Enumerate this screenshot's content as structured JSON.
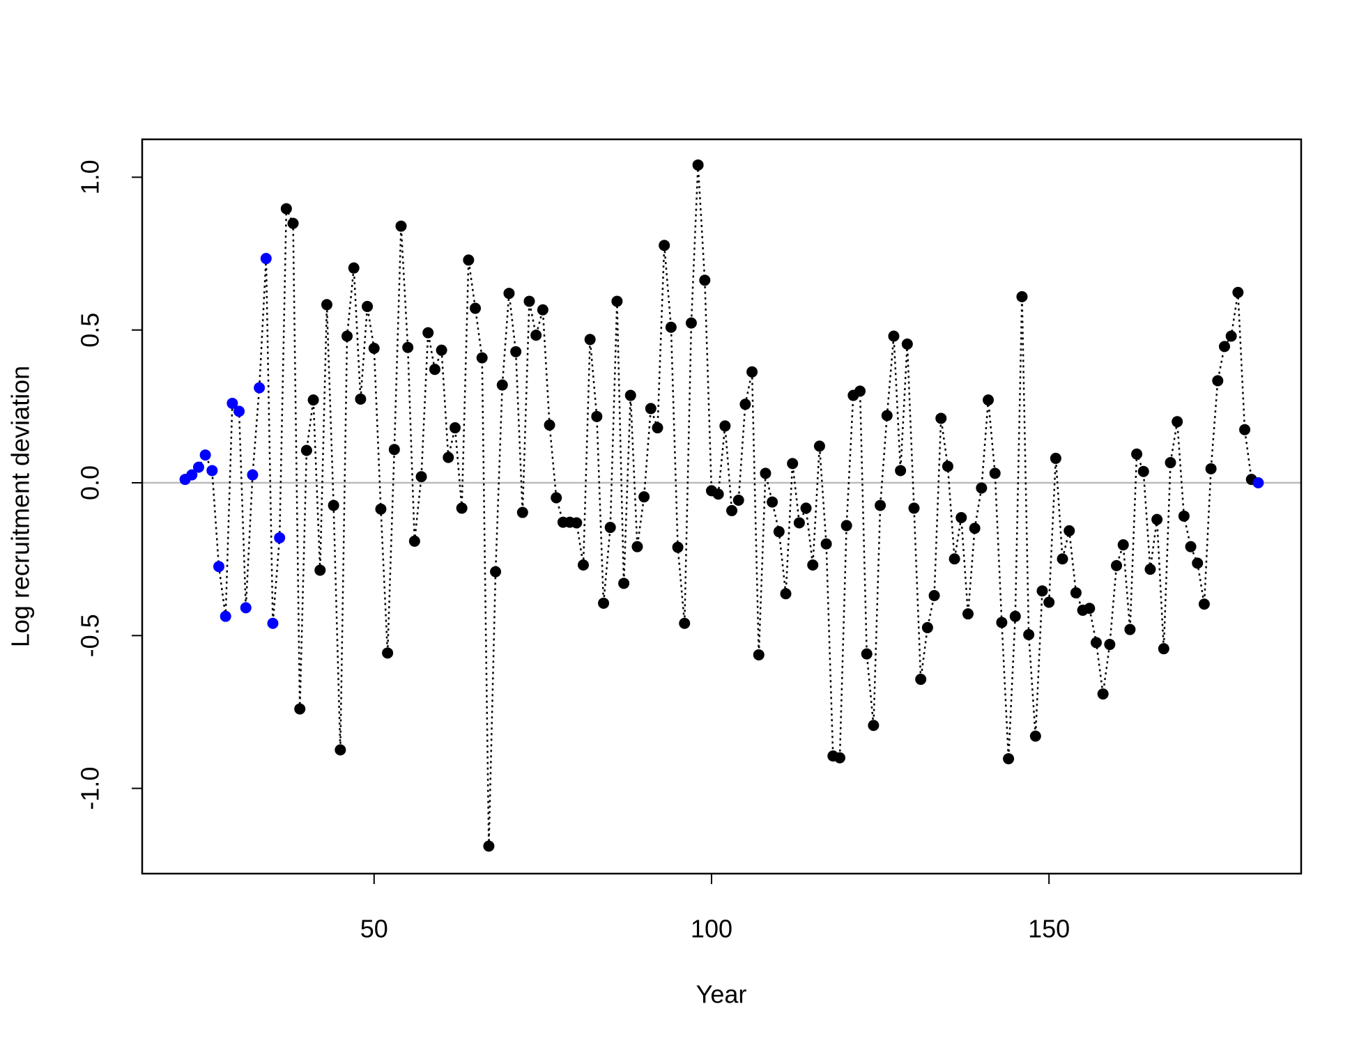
{
  "chart_data": {
    "type": "line",
    "xlabel": "Year",
    "ylabel": "Log recruitment deviation",
    "x": [
      22,
      23,
      24,
      25,
      26,
      27,
      28,
      29,
      30,
      31,
      32,
      33,
      34,
      35,
      36,
      37,
      38,
      39,
      40,
      41,
      42,
      43,
      44,
      45,
      46,
      47,
      48,
      49,
      50,
      51,
      52,
      53,
      54,
      55,
      56,
      57,
      58,
      59,
      60,
      61,
      62,
      63,
      64,
      65,
      66,
      67,
      68,
      69,
      70,
      71,
      72,
      73,
      74,
      75,
      76,
      77,
      78,
      79,
      80,
      81,
      82,
      83,
      84,
      85,
      86,
      87,
      88,
      89,
      90,
      91,
      92,
      93,
      94,
      95,
      96,
      97,
      98,
      99,
      100,
      101,
      102,
      103,
      104,
      105,
      106,
      107,
      108,
      109,
      110,
      111,
      112,
      113,
      114,
      115,
      116,
      117,
      118,
      119,
      120,
      121,
      122,
      123,
      124,
      125,
      126,
      127,
      128,
      129,
      130,
      131,
      132,
      133,
      134,
      135,
      136,
      137,
      138,
      139,
      140,
      141,
      142,
      143,
      144,
      145,
      146,
      147,
      148,
      149,
      150,
      151,
      152,
      153,
      154,
      155,
      156,
      157,
      158,
      159,
      160,
      161,
      162,
      163,
      164,
      165,
      166,
      167,
      168,
      169,
      170,
      171,
      172,
      173,
      174,
      175,
      176,
      177,
      178,
      179,
      180,
      181
    ],
    "values": [
      0.011,
      0.026,
      0.051,
      0.091,
      0.04,
      -0.274,
      -0.437,
      0.26,
      0.234,
      -0.409,
      0.026,
      0.311,
      0.734,
      -0.46,
      -0.18,
      0.897,
      0.849,
      -0.74,
      0.106,
      0.271,
      -0.286,
      0.583,
      -0.074,
      -0.874,
      0.48,
      0.703,
      0.274,
      0.577,
      0.44,
      -0.086,
      -0.557,
      0.109,
      0.84,
      0.443,
      -0.191,
      0.02,
      0.491,
      0.371,
      0.434,
      0.083,
      0.18,
      -0.083,
      0.729,
      0.571,
      0.409,
      -1.189,
      -0.291,
      0.32,
      0.62,
      0.429,
      -0.097,
      0.594,
      0.483,
      0.566,
      0.189,
      -0.049,
      -0.129,
      -0.129,
      -0.131,
      -0.269,
      0.469,
      0.217,
      -0.394,
      -0.146,
      0.594,
      -0.329,
      0.286,
      -0.209,
      -0.046,
      0.243,
      0.18,
      0.777,
      0.509,
      -0.211,
      -0.46,
      0.523,
      1.04,
      0.663,
      -0.026,
      -0.037,
      0.186,
      -0.091,
      -0.057,
      0.257,
      0.363,
      -0.563,
      0.031,
      -0.063,
      -0.16,
      -0.363,
      0.063,
      -0.131,
      -0.083,
      -0.269,
      0.12,
      -0.2,
      -0.894,
      -0.9,
      -0.14,
      0.286,
      0.3,
      -0.56,
      -0.794,
      -0.074,
      0.22,
      0.48,
      0.04,
      0.454,
      -0.083,
      -0.643,
      -0.474,
      -0.369,
      0.211,
      0.054,
      -0.249,
      -0.114,
      -0.429,
      -0.149,
      -0.017,
      0.271,
      0.031,
      -0.457,
      -0.903,
      -0.437,
      0.609,
      -0.497,
      -0.829,
      -0.354,
      -0.391,
      0.08,
      -0.249,
      -0.157,
      -0.36,
      -0.417,
      -0.411,
      -0.523,
      -0.691,
      -0.529,
      -0.271,
      -0.203,
      -0.48,
      0.094,
      0.037,
      -0.283,
      -0.12,
      -0.543,
      0.066,
      0.2,
      -0.109,
      -0.209,
      -0.263,
      -0.397,
      0.046,
      0.334,
      0.446,
      0.48,
      0.623,
      0.174,
      0.011,
      0.0
    ],
    "point_colors": [
      "#0000ff",
      "#0000ff",
      "#0000ff",
      "#0000ff",
      "#0000ff",
      "#0000ff",
      "#0000ff",
      "#0000ff",
      "#0000ff",
      "#0000ff",
      "#0000ff",
      "#0000ff",
      "#0000ff",
      "#0000ff",
      "#0000ff",
      "#000000",
      "#000000",
      "#000000",
      "#000000",
      "#000000",
      "#000000",
      "#000000",
      "#000000",
      "#000000",
      "#000000",
      "#000000",
      "#000000",
      "#000000",
      "#000000",
      "#000000",
      "#000000",
      "#000000",
      "#000000",
      "#000000",
      "#000000",
      "#000000",
      "#000000",
      "#000000",
      "#000000",
      "#000000",
      "#000000",
      "#000000",
      "#000000",
      "#000000",
      "#000000",
      "#000000",
      "#000000",
      "#000000",
      "#000000",
      "#000000",
      "#000000",
      "#000000",
      "#000000",
      "#000000",
      "#000000",
      "#000000",
      "#000000",
      "#000000",
      "#000000",
      "#000000",
      "#000000",
      "#000000",
      "#000000",
      "#000000",
      "#000000",
      "#000000",
      "#000000",
      "#000000",
      "#000000",
      "#000000",
      "#000000",
      "#000000",
      "#000000",
      "#000000",
      "#000000",
      "#000000",
      "#000000",
      "#000000",
      "#000000",
      "#000000",
      "#000000",
      "#000000",
      "#000000",
      "#000000",
      "#000000",
      "#000000",
      "#000000",
      "#000000",
      "#000000",
      "#000000",
      "#000000",
      "#000000",
      "#000000",
      "#000000",
      "#000000",
      "#000000",
      "#000000",
      "#000000",
      "#000000",
      "#000000",
      "#000000",
      "#000000",
      "#000000",
      "#000000",
      "#000000",
      "#000000",
      "#000000",
      "#000000",
      "#000000",
      "#000000",
      "#000000",
      "#000000",
      "#000000",
      "#000000",
      "#000000",
      "#000000",
      "#000000",
      "#000000",
      "#000000",
      "#000000",
      "#000000",
      "#000000",
      "#000000",
      "#000000",
      "#000000",
      "#000000",
      "#000000",
      "#000000",
      "#000000",
      "#000000",
      "#000000",
      "#000000",
      "#000000",
      "#000000",
      "#000000",
      "#000000",
      "#000000",
      "#000000",
      "#000000",
      "#000000",
      "#000000",
      "#000000",
      "#000000",
      "#000000",
      "#000000",
      "#000000",
      "#000000",
      "#000000",
      "#000000",
      "#000000",
      "#000000",
      "#000000",
      "#000000",
      "#000000",
      "#000000",
      "#000000",
      "#000000",
      "#000000",
      "#000000",
      "#0000ff"
    ],
    "line_color": "#000000",
    "line_style": "dotted",
    "reference_line": 0,
    "reference_color": "#bbbbbb",
    "xlim": [
      15.64,
      187.36
    ],
    "xticks": [
      50,
      100,
      150
    ],
    "ylim": [
      -1.279,
      1.124
    ],
    "yticks": [
      {
        "value": -1,
        "label": "-1.0"
      },
      {
        "value": -0.5,
        "label": "-0.5"
      },
      {
        "value": 0,
        "label": "0.0"
      },
      {
        "value": 0.5,
        "label": "0.5"
      },
      {
        "value": 1,
        "label": "1.0"
      }
    ]
  }
}
